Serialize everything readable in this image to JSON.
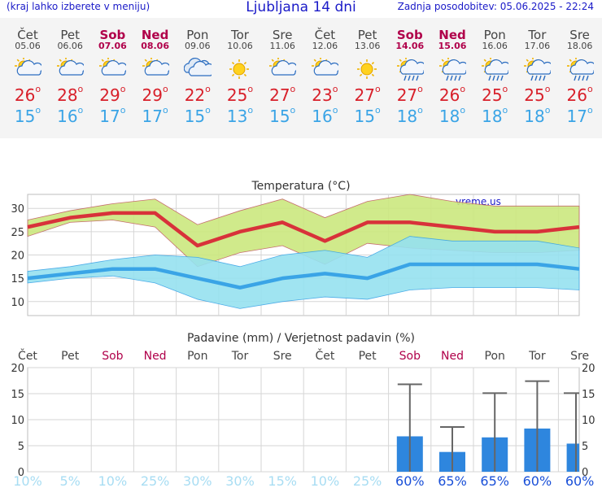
{
  "header": {
    "menu_hint": "(kraj lahko izberete v meniju)",
    "title": "Ljubljana 14 dni",
    "updated": "Zadnja posodobitev: 05.06.2025 - 22:24"
  },
  "days": [
    {
      "name": "Čet",
      "date": "05.06",
      "weekend": false,
      "icon": "partly-cloudy",
      "tmax": "26",
      "tmin": "15"
    },
    {
      "name": "Pet",
      "date": "06.06",
      "weekend": false,
      "icon": "partly-cloudy",
      "tmax": "28",
      "tmin": "16"
    },
    {
      "name": "Sob",
      "date": "07.06",
      "weekend": true,
      "icon": "partly-cloudy",
      "tmax": "29",
      "tmin": "17"
    },
    {
      "name": "Ned",
      "date": "08.06",
      "weekend": true,
      "icon": "partly-cloudy",
      "tmax": "29",
      "tmin": "17"
    },
    {
      "name": "Pon",
      "date": "09.06",
      "weekend": false,
      "icon": "cloudy",
      "tmax": "22",
      "tmin": "15"
    },
    {
      "name": "Tor",
      "date": "10.06",
      "weekend": false,
      "icon": "sunny",
      "tmax": "25",
      "tmin": "13"
    },
    {
      "name": "Sre",
      "date": "11.06",
      "weekend": false,
      "icon": "partly-cloudy",
      "tmax": "27",
      "tmin": "15"
    },
    {
      "name": "Čet",
      "date": "12.06",
      "weekend": false,
      "icon": "partly-cloudy",
      "tmax": "23",
      "tmin": "16"
    },
    {
      "name": "Pet",
      "date": "13.06",
      "weekend": false,
      "icon": "sunny",
      "tmax": "27",
      "tmin": "15"
    },
    {
      "name": "Sob",
      "date": "14.06",
      "weekend": true,
      "icon": "sun-rain",
      "tmax": "27",
      "tmin": "18"
    },
    {
      "name": "Ned",
      "date": "15.06",
      "weekend": true,
      "icon": "sun-rain",
      "tmax": "26",
      "tmin": "18"
    },
    {
      "name": "Pon",
      "date": "16.06",
      "weekend": false,
      "icon": "sun-rain",
      "tmax": "25",
      "tmin": "18"
    },
    {
      "name": "Tor",
      "date": "17.06",
      "weekend": false,
      "icon": "sun-rain",
      "tmax": "25",
      "tmin": "18"
    },
    {
      "name": "Sre",
      "date": "18.06",
      "weekend": false,
      "icon": "sun-rain",
      "tmax": "26",
      "tmin": "17"
    }
  ],
  "colors": {
    "max_line": "#d8323a",
    "min_line": "#3aa4e6",
    "max_band": "#cce87f",
    "min_band": "#96e2f0",
    "bar": "#2e86de",
    "weekday": "#444444",
    "weekend": "#b0004a",
    "prob_low": "#a8ddf3",
    "prob_high": "#1a50d8"
  },
  "chart_data": [
    {
      "type": "line",
      "title": "Temperatura (°C)",
      "watermark": "vreme.us",
      "ylim": [
        7,
        33
      ],
      "yticks": [
        "10",
        "15",
        "20",
        "25",
        "30"
      ],
      "x": [
        0,
        1,
        2,
        3,
        4,
        5,
        6,
        7,
        8,
        9,
        10,
        11,
        12,
        13
      ],
      "series": [
        {
          "name": "max",
          "values": [
            26,
            28,
            29,
            29,
            22,
            25,
            27,
            23,
            27,
            27,
            26,
            25,
            25,
            26
          ]
        },
        {
          "name": "max_upper",
          "values": [
            27.5,
            29.5,
            31,
            32,
            26.5,
            29.5,
            32,
            28,
            31.5,
            33,
            31.5,
            30.5,
            30.5,
            30.5
          ]
        },
        {
          "name": "max_lower",
          "values": [
            24,
            27,
            27.5,
            26,
            17.5,
            20.5,
            22,
            18,
            22.5,
            21.5,
            21,
            20.5,
            20.5,
            21
          ]
        },
        {
          "name": "min",
          "values": [
            15,
            16,
            17,
            17,
            15,
            13,
            15,
            16,
            15,
            18,
            18,
            18,
            18,
            17
          ]
        },
        {
          "name": "min_upper",
          "values": [
            16.5,
            17.5,
            19,
            20,
            19.5,
            17.5,
            20,
            21,
            19.5,
            24,
            23,
            23,
            23,
            21.5
          ]
        },
        {
          "name": "min_lower",
          "values": [
            14,
            15,
            15.5,
            14,
            10.5,
            8.5,
            10,
            11,
            10.5,
            12.5,
            13,
            13,
            13,
            12.5
          ]
        }
      ]
    },
    {
      "type": "bar",
      "title": "Padavine (mm) / Verjetnost padavin (%)",
      "ylim": [
        0,
        20
      ],
      "yticks": [
        "0",
        "5",
        "10",
        "15",
        "20"
      ],
      "categories": [
        "Čet",
        "Pet",
        "Sob",
        "Ned",
        "Pon",
        "Tor",
        "Sre",
        "Čet",
        "Pet",
        "Sob",
        "Ned",
        "Pon",
        "Tor",
        "Sre"
      ],
      "weekend": [
        false,
        false,
        true,
        true,
        false,
        false,
        false,
        false,
        false,
        true,
        true,
        false,
        false,
        false
      ],
      "values": [
        0,
        0,
        0,
        0,
        0,
        0,
        0,
        0,
        0,
        6.8,
        3.8,
        6.6,
        8.3,
        5.4
      ],
      "errors_upper": [
        0,
        0,
        0,
        0,
        0,
        0,
        0,
        0,
        0,
        16.8,
        8.6,
        15.1,
        17.4,
        15.1
      ],
      "probability": [
        "10%",
        "5%",
        "10%",
        "25%",
        "30%",
        "30%",
        "15%",
        "10%",
        "25%",
        "60%",
        "65%",
        "65%",
        "60%",
        "60%"
      ]
    }
  ]
}
